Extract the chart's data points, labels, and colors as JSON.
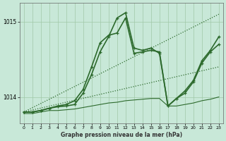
{
  "title": "Graphe pression niveau de la mer (hPa)",
  "background_color": "#c8e8d8",
  "line_color": "#2d6a2d",
  "grid_color": "#a0c8a8",
  "xlim": [
    -0.5,
    23.5
  ],
  "ylim": [
    1013.65,
    1015.25
  ],
  "yticks": [
    1014,
    1015
  ],
  "xticks": [
    0,
    1,
    2,
    3,
    4,
    5,
    6,
    7,
    8,
    9,
    10,
    11,
    12,
    13,
    14,
    15,
    16,
    17,
    18,
    19,
    20,
    21,
    22,
    23
  ],
  "series": [
    {
      "x": [
        0,
        23
      ],
      "y": [
        1013.8,
        1015.1
      ],
      "style": "dotted",
      "lw": 0.9,
      "marker": null
    },
    {
      "x": [
        0,
        23
      ],
      "y": [
        1013.8,
        1014.4
      ],
      "style": "dotted",
      "lw": 0.9,
      "marker": null
    },
    {
      "x": [
        0,
        1,
        2,
        3,
        4,
        5,
        6,
        7,
        8,
        9,
        10,
        11,
        12,
        13,
        14,
        15,
        16,
        17,
        18,
        19,
        20,
        21,
        22,
        23
      ],
      "y": [
        1013.8,
        1013.8,
        1013.82,
        1013.85,
        1013.87,
        1013.88,
        1013.9,
        1014.05,
        1014.3,
        1014.6,
        1014.8,
        1015.05,
        1015.12,
        1014.65,
        1014.62,
        1014.65,
        1014.58,
        1013.88,
        1013.98,
        1014.05,
        1014.2,
        1014.45,
        1014.6,
        1014.7
      ],
      "style": "solid",
      "lw": 1.2,
      "marker": "+"
    },
    {
      "x": [
        0,
        1,
        2,
        3,
        4,
        5,
        6,
        7,
        8,
        9,
        10,
        11,
        12,
        13,
        14,
        15,
        16,
        17,
        18,
        19,
        20,
        21,
        22,
        23
      ],
      "y": [
        1013.8,
        1013.8,
        1013.82,
        1013.85,
        1013.88,
        1013.9,
        1013.95,
        1014.1,
        1014.4,
        1014.72,
        1014.82,
        1014.85,
        1015.05,
        1014.58,
        1014.6,
        1014.62,
        1014.6,
        1013.88,
        1013.98,
        1014.08,
        1014.22,
        1014.48,
        1014.62,
        1014.8
      ],
      "style": "solid",
      "lw": 1.2,
      "marker": "+"
    },
    {
      "x": [
        0,
        1,
        2,
        3,
        4,
        5,
        6,
        7,
        8,
        9,
        10,
        11,
        12,
        13,
        14,
        15,
        16,
        17,
        18,
        19,
        20,
        21,
        22,
        23
      ],
      "y": [
        1013.78,
        1013.78,
        1013.8,
        1013.82,
        1013.82,
        1013.83,
        1013.84,
        1013.86,
        1013.88,
        1013.9,
        1013.92,
        1013.93,
        1013.95,
        1013.96,
        1013.97,
        1013.98,
        1013.98,
        1013.88,
        1013.88,
        1013.9,
        1013.92,
        1013.95,
        1013.97,
        1014.0
      ],
      "style": "solid",
      "lw": 0.8,
      "marker": null
    }
  ]
}
